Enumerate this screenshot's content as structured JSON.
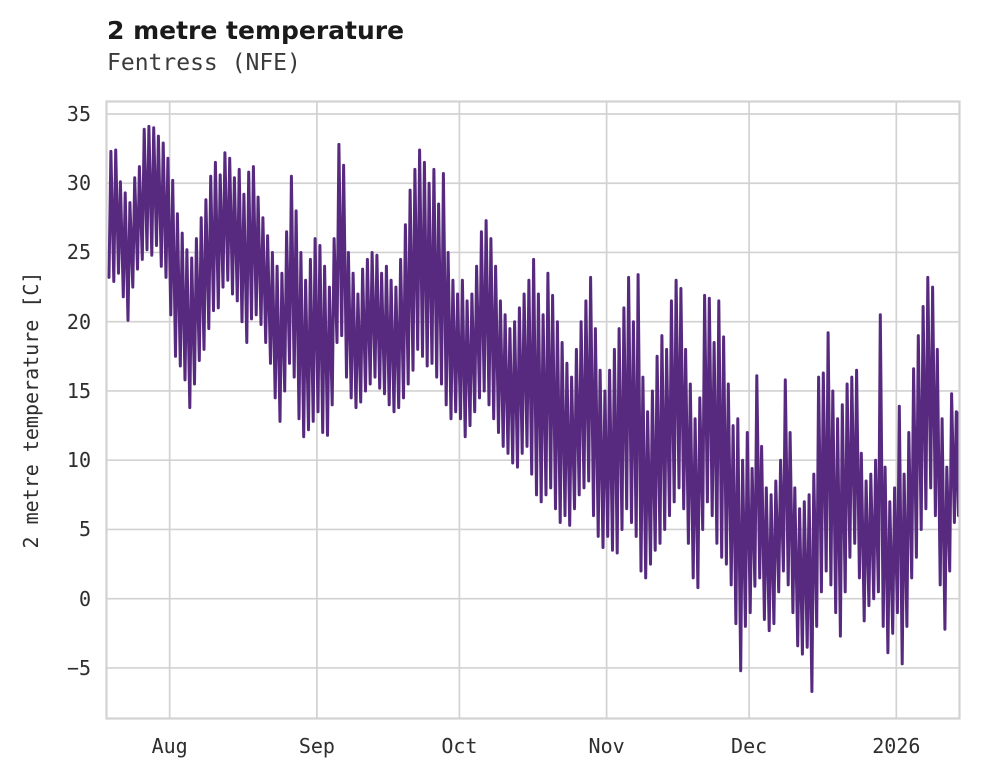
{
  "chart_data": {
    "type": "line",
    "title": "2 metre temperature",
    "subtitle": "Fentress (NFE)",
    "ylabel": "2 metre temperature [C]",
    "line_color": "#572a7f",
    "grid": true,
    "grid_color": "#d2d2d2",
    "legend": "none",
    "start_date": "2025-07-19",
    "xlim_days": [
      0,
      179.6
    ],
    "ylim": [
      -8.65,
      35.9
    ],
    "y_ticks": [
      {
        "value": 35,
        "label": "35"
      },
      {
        "value": 30,
        "label": "30"
      },
      {
        "value": 25,
        "label": "25"
      },
      {
        "value": 20,
        "label": "20"
      },
      {
        "value": 15,
        "label": "15"
      },
      {
        "value": 10,
        "label": "10"
      },
      {
        "value": 5,
        "label": "5"
      },
      {
        "value": 0,
        "label": "0"
      },
      {
        "value": -5,
        "label": "−5"
      }
    ],
    "x_ticks": [
      {
        "day": 13.3,
        "label": "Aug"
      },
      {
        "day": 44.3,
        "label": "Sep"
      },
      {
        "day": 74.3,
        "label": "Oct"
      },
      {
        "day": 105.3,
        "label": "Nov"
      },
      {
        "day": 135.3,
        "label": "Dec"
      },
      {
        "day": 166.3,
        "label": "2026"
      }
    ],
    "daily_min": [
      23.2,
      22.9,
      23.5,
      21.8,
      20.1,
      22.5,
      23.8,
      24.5,
      25.2,
      24.8,
      25.5,
      24.0,
      23.2,
      20.5,
      17.5,
      16.8,
      15.8,
      13.8,
      15.5,
      17.2,
      18.0,
      19.5,
      20.8,
      21.0,
      22.5,
      23.0,
      22.0,
      21.5,
      20.0,
      18.5,
      20.2,
      20.5,
      19.8,
      18.5,
      17.0,
      14.5,
      12.8,
      15.0,
      17.0,
      16.0,
      13.0,
      11.7,
      12.2,
      12.8,
      13.5,
      12.0,
      11.8,
      14.0,
      18.5,
      19.0,
      16.0,
      14.5,
      13.8,
      14.2,
      15.0,
      15.5,
      16.0,
      15.2,
      14.8,
      14.0,
      13.5,
      13.8,
      14.5,
      15.5,
      16.5,
      18.0,
      17.5,
      16.8,
      17.0,
      16.0,
      15.5,
      14.0,
      13.0,
      13.5,
      13.0,
      11.7,
      12.5,
      13.5,
      14.5,
      15.0,
      14.0,
      13.0,
      12.0,
      11.0,
      10.5,
      9.8,
      9.5,
      10.5,
      11.0,
      9.0,
      7.5,
      7.0,
      7.5,
      8.0,
      6.5,
      5.5,
      6.0,
      5.3,
      6.5,
      7.5,
      8.0,
      8.5,
      6.0,
      4.5,
      3.7,
      4.5,
      3.5,
      3.3,
      5.0,
      6.5,
      5.5,
      4.5,
      2.0,
      1.5,
      2.5,
      3.5,
      4.0,
      5.0,
      6.0,
      7.0,
      8.0,
      6.5,
      4.0,
      1.5,
      0.8,
      5.0,
      7.0,
      6.0,
      4.0,
      3.0,
      2.5,
      1.0,
      -1.8,
      -5.2,
      -2.0,
      -1.0,
      0.9,
      1.5,
      -1.5,
      -2.3,
      -1.8,
      0.5,
      2.0,
      1.0,
      -1.0,
      -3.4,
      -4.0,
      -3.5,
      -6.7,
      -2.0,
      0.5,
      2.0,
      1.0,
      -1.0,
      -2.7,
      0.5,
      3.0,
      4.0,
      1.5,
      -1.6,
      -0.5,
      0.0,
      0.5,
      -2.0,
      -3.9,
      -2.5,
      -1.0,
      -4.7,
      -2.0,
      1.5,
      3.0,
      5.0,
      6.5,
      8.0,
      6.0,
      1.0,
      -2.2,
      2.0,
      5.5,
      6.0
    ],
    "daily_max": [
      32.3,
      32.4,
      30.1,
      29.3,
      28.6,
      30.4,
      31.2,
      33.9,
      34.1,
      34.0,
      33.4,
      32.9,
      31.8,
      30.2,
      27.8,
      26.4,
      25.2,
      24.6,
      26.0,
      27.5,
      28.8,
      30.5,
      31.5,
      30.6,
      32.2,
      31.8,
      30.4,
      31.0,
      29.2,
      30.8,
      31.2,
      29.0,
      27.5,
      26.2,
      25.0,
      24.0,
      23.5,
      26.5,
      30.5,
      28.0,
      25.0,
      23.0,
      24.5,
      26.0,
      25.5,
      24.0,
      22.5,
      26.0,
      32.8,
      31.3,
      25.0,
      23.5,
      22.0,
      23.8,
      24.5,
      25.0,
      24.8,
      23.5,
      24.0,
      23.0,
      22.5,
      24.5,
      27.0,
      29.5,
      31.0,
      32.4,
      31.5,
      30.0,
      31.0,
      28.5,
      30.7,
      25.0,
      23.0,
      22.0,
      23.0,
      21.5,
      22.0,
      24.0,
      26.5,
      27.3,
      26.0,
      24.0,
      21.5,
      20.5,
      19.5,
      20.0,
      21.0,
      22.0,
      23.0,
      24.5,
      22.0,
      20.5,
      23.5,
      21.9,
      20.0,
      18.5,
      17.0,
      16.0,
      18.0,
      20.0,
      21.5,
      23.2,
      19.5,
      16.5,
      15.0,
      16.5,
      18.0,
      19.5,
      21.0,
      23.2,
      20.0,
      23.4,
      16.0,
      13.5,
      15.0,
      17.5,
      19.0,
      18.0,
      21.5,
      23.0,
      22.4,
      18.0,
      15.5,
      13.0,
      14.5,
      21.9,
      21.7,
      18.5,
      21.5,
      18.9,
      15.5,
      12.5,
      13.0,
      10.0,
      12.0,
      9.4,
      16.1,
      11.0,
      8.0,
      7.5,
      8.5,
      10.0,
      15.8,
      12.0,
      8.0,
      6.5,
      7.0,
      7.5,
      9.0,
      16.0,
      16.3,
      19.2,
      15.0,
      13.0,
      14.0,
      15.5,
      16.0,
      16.5,
      10.5,
      8.5,
      9.0,
      10.0,
      20.5,
      9.5,
      7.0,
      8.0,
      13.9,
      9.0,
      12.0,
      16.6,
      19.0,
      21.1,
      23.2,
      22.5,
      18.0,
      13.0,
      9.5,
      14.8,
      13.5,
      13.4
    ]
  }
}
